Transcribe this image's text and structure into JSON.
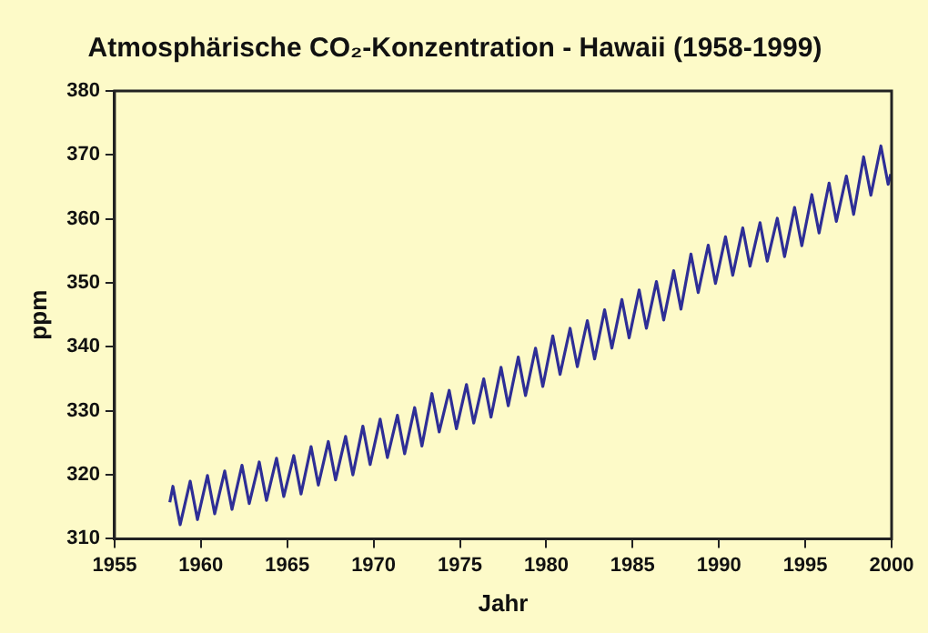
{
  "chart_data": {
    "type": "line",
    "title": "Atmosphärische CO₂-Konzentration - Hawaii (1958-1999)",
    "xlabel": "Jahr",
    "ylabel": "ppm",
    "x": [
      1958.2,
      1958.38,
      1958.8,
      1959.38,
      1959.8,
      1960.38,
      1960.8,
      1961.38,
      1961.8,
      1962.38,
      1962.8,
      1963.38,
      1963.8,
      1964.38,
      1964.8,
      1965.38,
      1965.8,
      1966.38,
      1966.8,
      1967.38,
      1967.8,
      1968.38,
      1968.8,
      1969.38,
      1969.8,
      1970.38,
      1970.8,
      1971.38,
      1971.8,
      1972.38,
      1972.8,
      1973.38,
      1973.8,
      1974.38,
      1974.8,
      1975.38,
      1975.8,
      1976.38,
      1976.8,
      1977.38,
      1977.8,
      1978.38,
      1978.8,
      1979.38,
      1979.8,
      1980.38,
      1980.8,
      1981.38,
      1981.8,
      1982.38,
      1982.8,
      1983.38,
      1983.8,
      1984.38,
      1984.8,
      1985.38,
      1985.8,
      1986.38,
      1986.8,
      1987.38,
      1987.8,
      1988.38,
      1988.8,
      1989.38,
      1989.8,
      1990.38,
      1990.8,
      1991.38,
      1991.8,
      1992.38,
      1992.8,
      1993.38,
      1993.8,
      1994.38,
      1994.8,
      1995.38,
      1995.8,
      1996.38,
      1996.8,
      1997.38,
      1997.8,
      1998.38,
      1998.8,
      1999.38,
      1999.8,
      1999.95
    ],
    "series": [
      {
        "color": "#2e2e96",
        "values": [
          315.7,
          318.2,
          312.2,
          319.0,
          313.0,
          319.9,
          313.9,
          320.6,
          314.6,
          321.5,
          315.5,
          322.0,
          316.0,
          322.6,
          316.6,
          323.0,
          317.0,
          324.4,
          318.4,
          325.2,
          319.2,
          326.0,
          320.0,
          327.6,
          321.6,
          328.7,
          322.7,
          329.3,
          323.3,
          330.5,
          324.5,
          332.7,
          326.7,
          333.2,
          327.2,
          334.1,
          328.1,
          335.0,
          329.0,
          336.8,
          330.8,
          338.4,
          332.4,
          339.8,
          333.8,
          341.7,
          335.7,
          342.9,
          336.9,
          344.1,
          338.1,
          345.8,
          339.8,
          347.4,
          341.4,
          348.9,
          342.9,
          350.2,
          344.2,
          351.9,
          345.9,
          354.5,
          348.5,
          355.9,
          349.9,
          357.2,
          351.2,
          358.6,
          352.6,
          359.4,
          353.4,
          360.1,
          354.1,
          361.8,
          355.8,
          363.8,
          357.8,
          365.6,
          359.6,
          366.7,
          360.7,
          369.7,
          363.7,
          371.4,
          365.4,
          367.0
        ]
      }
    ],
    "xlim": [
      1955,
      2000
    ],
    "xticks": [
      1955,
      1960,
      1965,
      1970,
      1975,
      1980,
      1985,
      1990,
      1995,
      2000
    ],
    "ylim": [
      310,
      380
    ],
    "yticks": [
      310,
      320,
      330,
      340,
      350,
      360,
      370,
      380
    ],
    "grid": false,
    "legend": false,
    "marker": "none",
    "line_style": "solid"
  }
}
